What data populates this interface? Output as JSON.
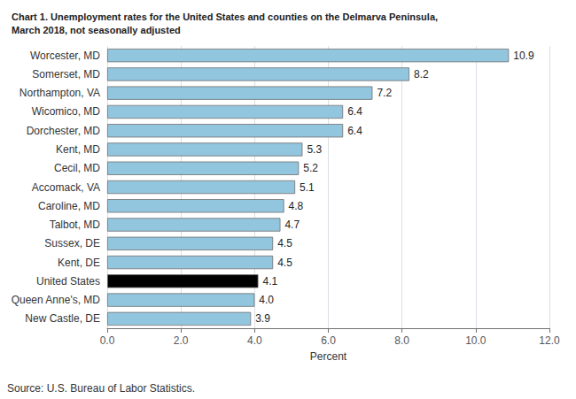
{
  "chart_data": {
    "type": "bar",
    "orientation": "horizontal",
    "title": "Chart 1. Unemployment rates for the United States and counties on the Delmarva Peninsula,\nMarch 2018, not seasonally adjusted",
    "categories": [
      "New Castle, DE",
      "Queen Anne's, MD",
      "United States",
      "Kent, DE",
      "Sussex, DE",
      "Talbot, MD",
      "Caroline, MD",
      "Accomack, VA",
      "Cecil, MD",
      "Kent, MD",
      "Dorchester, MD",
      "Wicomico, MD",
      "Northampton, VA",
      "Somerset, MD",
      "Worcester, MD"
    ],
    "values": [
      3.9,
      4.0,
      4.1,
      4.5,
      4.5,
      4.7,
      4.8,
      5.1,
      5.2,
      5.3,
      6.4,
      6.4,
      7.2,
      8.2,
      10.9
    ],
    "value_labels": [
      "3.9",
      "4.0",
      "4.1",
      "4.5",
      "4.5",
      "4.7",
      "4.8",
      "5.1",
      "5.2",
      "5.3",
      "6.4",
      "6.4",
      "7.2",
      "8.2",
      "10.9"
    ],
    "data_labels": true,
    "colors": [
      "#92C5DE",
      "#92C5DE",
      "#000000",
      "#92C5DE",
      "#92C5DE",
      "#92C5DE",
      "#92C5DE",
      "#92C5DE",
      "#92C5DE",
      "#92C5DE",
      "#92C5DE",
      "#92C5DE",
      "#92C5DE",
      "#92C5DE",
      "#92C5DE"
    ],
    "xlabel": "Percent",
    "xlim": [
      0,
      12.0
    ],
    "xticks": [
      {
        "value": 0,
        "label": "0.0"
      },
      {
        "value": 2,
        "label": "2.0"
      },
      {
        "value": 4,
        "label": "4.0"
      },
      {
        "value": 6,
        "label": "6.0"
      },
      {
        "value": 8,
        "label": "8.0"
      },
      {
        "value": 10,
        "label": "10.0"
      },
      {
        "value": 12,
        "label": "12.0"
      }
    ],
    "grid": true,
    "annotations": [
      "Source: U.S. Bureau of Labor Statistics."
    ]
  }
}
